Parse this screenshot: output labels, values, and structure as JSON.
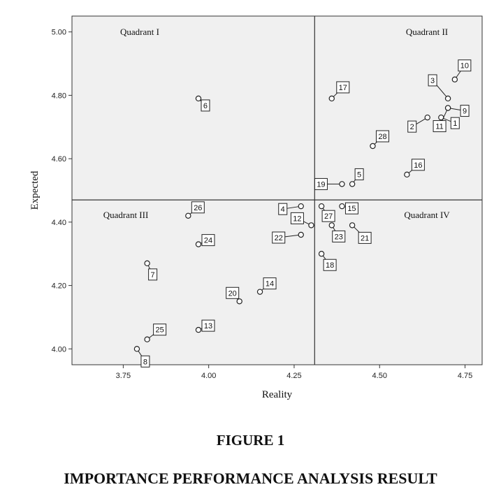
{
  "caption": {
    "figure_number": "FIGURE 1",
    "title": "IMPORTANCE PERFORMANCE ANALYSIS RESULT"
  },
  "chart_data": {
    "type": "scatter",
    "title": "",
    "xlabel": "Reality",
    "ylabel": "Expected",
    "xlim": [
      3.6,
      4.8
    ],
    "ylim": [
      3.95,
      5.05
    ],
    "x_ticks": [
      "3.75",
      "4.00",
      "4.25",
      "4.50",
      "4.75"
    ],
    "y_ticks": [
      "4.00",
      "4.20",
      "4.40",
      "4.60",
      "4.80",
      "5.00"
    ],
    "reference_lines": {
      "x": 4.31,
      "y": 4.47
    },
    "quadrants": [
      "Quadrant I",
      "Quadrant II",
      "Quadrant III",
      "Quadrant IV"
    ],
    "grid": false,
    "background_color": "#f0f0f0",
    "points": [
      {
        "label": "1",
        "x": 4.68,
        "y": 4.73
      },
      {
        "label": "2",
        "x": 4.64,
        "y": 4.73
      },
      {
        "label": "3",
        "x": 4.7,
        "y": 4.79
      },
      {
        "label": "4",
        "x": 4.27,
        "y": 4.45
      },
      {
        "label": "5",
        "x": 4.42,
        "y": 4.52
      },
      {
        "label": "6",
        "x": 3.97,
        "y": 4.79
      },
      {
        "label": "7",
        "x": 3.82,
        "y": 4.27
      },
      {
        "label": "8",
        "x": 3.79,
        "y": 4.0
      },
      {
        "label": "9",
        "x": 4.7,
        "y": 4.76
      },
      {
        "label": "10",
        "x": 4.72,
        "y": 4.85
      },
      {
        "label": "11",
        "x": 4.7,
        "y": 4.76
      },
      {
        "label": "12",
        "x": 4.3,
        "y": 4.39
      },
      {
        "label": "13",
        "x": 3.97,
        "y": 4.06
      },
      {
        "label": "14",
        "x": 4.15,
        "y": 4.18
      },
      {
        "label": "15",
        "x": 4.39,
        "y": 4.45
      },
      {
        "label": "16",
        "x": 4.58,
        "y": 4.55
      },
      {
        "label": "17",
        "x": 4.36,
        "y": 4.79
      },
      {
        "label": "18",
        "x": 4.33,
        "y": 4.3
      },
      {
        "label": "19",
        "x": 4.39,
        "y": 4.52
      },
      {
        "label": "20",
        "x": 4.09,
        "y": 4.15
      },
      {
        "label": "21",
        "x": 4.42,
        "y": 4.39
      },
      {
        "label": "22",
        "x": 4.27,
        "y": 4.36
      },
      {
        "label": "23",
        "x": 4.36,
        "y": 4.39
      },
      {
        "label": "24",
        "x": 3.97,
        "y": 4.33
      },
      {
        "label": "25",
        "x": 3.82,
        "y": 4.03
      },
      {
        "label": "26",
        "x": 3.94,
        "y": 4.42
      },
      {
        "label": "27",
        "x": 4.33,
        "y": 4.45
      },
      {
        "label": "28",
        "x": 4.48,
        "y": 4.64
      }
    ]
  }
}
